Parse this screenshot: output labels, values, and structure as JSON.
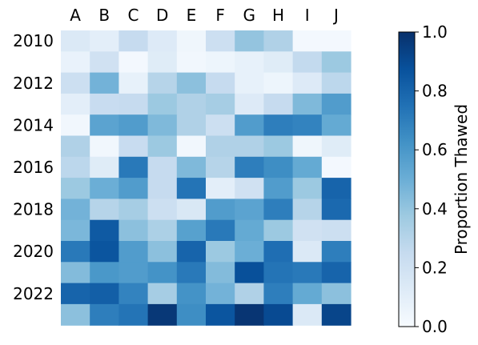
{
  "chart_data": {
    "type": "heatmap",
    "title": "",
    "colorbar_label": "Proportion Thawed",
    "colormap": "Blues",
    "color_range": [
      0.0,
      1.0
    ],
    "colorbar_ticks": [
      {
        "value": 0.0,
        "label": "0.0"
      },
      {
        "value": 0.2,
        "label": "0.2"
      },
      {
        "value": 0.4,
        "label": "0.4"
      },
      {
        "value": 0.6,
        "label": "0.6"
      },
      {
        "value": 0.8,
        "label": "0.8"
      },
      {
        "value": 1.0,
        "label": "1.0"
      }
    ],
    "columns": [
      "A",
      "B",
      "C",
      "D",
      "E",
      "F",
      "G",
      "H",
      "I",
      "J"
    ],
    "rows": [
      2010,
      2011,
      2012,
      2013,
      2014,
      2015,
      2016,
      2017,
      2018,
      2019,
      2020,
      2021,
      2022,
      2023
    ],
    "row_tick_labels": [
      "2010",
      "2012",
      "2014",
      "2016",
      "2018",
      "2020",
      "2022"
    ],
    "values": [
      [
        0.14,
        0.1,
        0.25,
        0.13,
        0.04,
        0.22,
        0.4,
        0.32,
        0.02,
        0.02
      ],
      [
        0.07,
        0.2,
        0.02,
        0.12,
        0.03,
        0.05,
        0.08,
        0.12,
        0.26,
        0.38
      ],
      [
        0.22,
        0.48,
        0.08,
        0.3,
        0.42,
        0.25,
        0.08,
        0.05,
        0.13,
        0.28
      ],
      [
        0.1,
        0.24,
        0.25,
        0.38,
        0.32,
        0.35,
        0.13,
        0.25,
        0.45,
        0.58
      ],
      [
        0.03,
        0.55,
        0.58,
        0.45,
        0.32,
        0.22,
        0.58,
        0.7,
        0.68,
        0.52
      ],
      [
        0.32,
        0.03,
        0.24,
        0.38,
        0.03,
        0.32,
        0.32,
        0.38,
        0.04,
        0.12
      ],
      [
        0.28,
        0.12,
        0.72,
        0.25,
        0.45,
        0.3,
        0.7,
        0.64,
        0.52,
        0.02
      ],
      [
        0.38,
        0.5,
        0.58,
        0.25,
        0.74,
        0.1,
        0.2,
        0.58,
        0.38,
        0.8
      ],
      [
        0.48,
        0.3,
        0.35,
        0.22,
        0.15,
        0.58,
        0.55,
        0.7,
        0.3,
        0.78
      ],
      [
        0.46,
        0.84,
        0.42,
        0.33,
        0.56,
        0.72,
        0.52,
        0.38,
        0.2,
        0.22
      ],
      [
        0.72,
        0.86,
        0.58,
        0.42,
        0.8,
        0.38,
        0.5,
        0.76,
        0.14,
        0.7
      ],
      [
        0.44,
        0.6,
        0.58,
        0.62,
        0.72,
        0.44,
        0.88,
        0.74,
        0.72,
        0.8
      ],
      [
        0.8,
        0.82,
        0.68,
        0.35,
        0.62,
        0.48,
        0.32,
        0.7,
        0.52,
        0.42
      ],
      [
        0.42,
        0.7,
        0.74,
        0.97,
        0.64,
        0.86,
        0.98,
        0.9,
        0.14,
        0.92
      ]
    ]
  }
}
